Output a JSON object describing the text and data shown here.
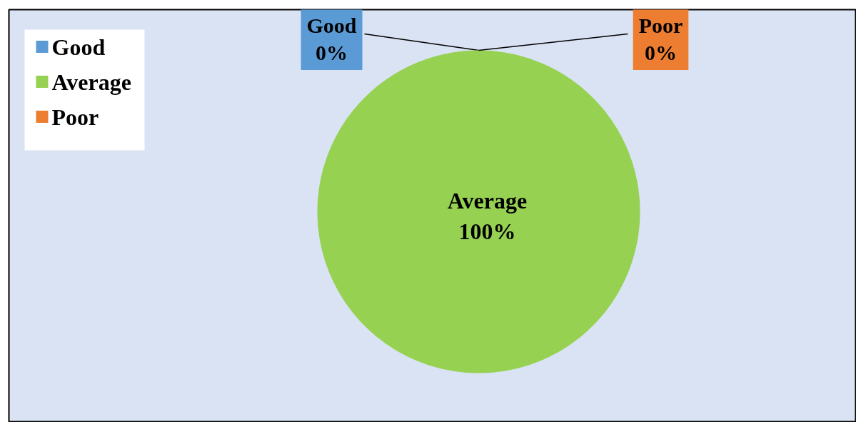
{
  "chart_data": {
    "type": "pie",
    "categories": [
      "Good",
      "Average",
      "Poor"
    ],
    "values": [
      0,
      100,
      0
    ],
    "colors": [
      "#5b9bd5",
      "#96d152",
      "#ed7d31"
    ],
    "value_labels": [
      "0%",
      "100%",
      "0%"
    ],
    "legend": "top left"
  }
}
